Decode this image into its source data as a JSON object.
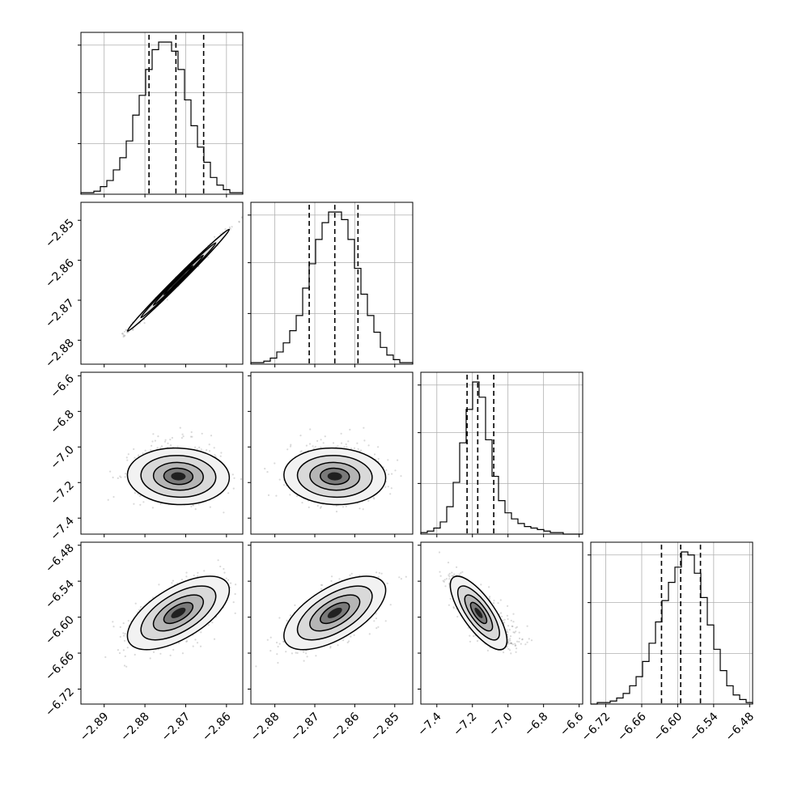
{
  "figure": {
    "background": "#ffffff",
    "point_color": "#808080",
    "line_color": "#000000"
  },
  "chart_data": {
    "type": "corner",
    "parameters": [
      {
        "id": "p0",
        "range": [
          -2.8957,
          -2.856
        ],
        "ticks": [
          -2.89,
          -2.88,
          -2.87,
          -2.86
        ],
        "tick_labels": [
          "−2.89",
          "−2.88",
          "−2.87",
          "−2.86"
        ],
        "quantiles": [
          -2.879,
          -2.8724,
          -2.8656
        ],
        "mean": -2.8718,
        "sd": 0.0051
      },
      {
        "id": "p1",
        "range": [
          -2.886,
          -2.8455
        ],
        "ticks": [
          -2.88,
          -2.87,
          -2.86,
          -2.85
        ],
        "tick_labels": [
          "−2.88",
          "−2.87",
          "−2.86",
          "−2.85"
        ],
        "quantiles": [
          -2.8714,
          -2.865,
          -2.8592
        ],
        "mean": -2.865,
        "sd": 0.0052
      },
      {
        "id": "p2",
        "range": [
          -7.49,
          -6.58
        ],
        "ticks": [
          -7.4,
          -7.2,
          -7.0,
          -6.8,
          -6.6
        ],
        "tick_labels": [
          "−7.4",
          "−7.2",
          "−7.0",
          "−6.8",
          "−6.6"
        ],
        "quantiles": [
          -7.23,
          -7.17,
          -7.08
        ],
        "mean": -7.165,
        "sd": 0.065
      },
      {
        "id": "p3",
        "range": [
          -6.745,
          -6.475
        ],
        "ticks": [
          -6.72,
          -6.66,
          -6.6,
          -6.54,
          -6.48
        ],
        "tick_labels": [
          "−6.72",
          "−6.66",
          "−6.60",
          "−6.54",
          "−6.48"
        ],
        "quantiles": [
          -6.627,
          -6.595,
          -6.562
        ],
        "mean": -6.593,
        "sd": 0.025
      }
    ],
    "histograms": [
      {
        "param": "p0",
        "bins": 25,
        "counts": [
          1,
          1,
          2,
          5,
          9,
          16,
          24,
          35,
          52,
          65,
          82,
          95,
          100,
          100,
          94,
          82,
          62,
          45,
          31,
          21,
          11,
          6,
          3,
          1,
          1
        ]
      },
      {
        "param": "p1",
        "bins": 25,
        "counts": [
          1,
          1,
          2,
          4,
          8,
          14,
          22,
          32,
          50,
          66,
          82,
          93,
          100,
          100,
          95,
          82,
          63,
          46,
          32,
          21,
          11,
          6,
          3,
          1,
          1
        ]
      },
      {
        "param": "p2",
        "bins": 25,
        "counts": [
          1,
          2,
          4,
          8,
          18,
          34,
          60,
          82,
          100,
          90,
          62,
          38,
          22,
          14,
          10,
          7,
          5,
          4,
          3,
          2,
          1,
          1,
          0,
          0,
          0
        ]
      },
      {
        "param": "p3",
        "bins": 25,
        "counts": [
          0,
          1,
          1,
          2,
          4,
          7,
          12,
          18,
          28,
          40,
          54,
          68,
          80,
          90,
          100,
          98,
          86,
          70,
          52,
          36,
          22,
          12,
          6,
          3,
          1
        ]
      }
    ],
    "pairs": [
      {
        "x": "p0",
        "y": "p1",
        "correlation": 0.995
      },
      {
        "x": "p0",
        "y": "p2",
        "correlation": -0.05
      },
      {
        "x": "p1",
        "y": "p2",
        "correlation": -0.05
      },
      {
        "x": "p0",
        "y": "p3",
        "correlation": 0.62
      },
      {
        "x": "p1",
        "y": "p3",
        "correlation": 0.62
      },
      {
        "x": "p2",
        "y": "p3",
        "correlation": -0.75
      }
    ],
    "grid": true,
    "legend": "none"
  }
}
